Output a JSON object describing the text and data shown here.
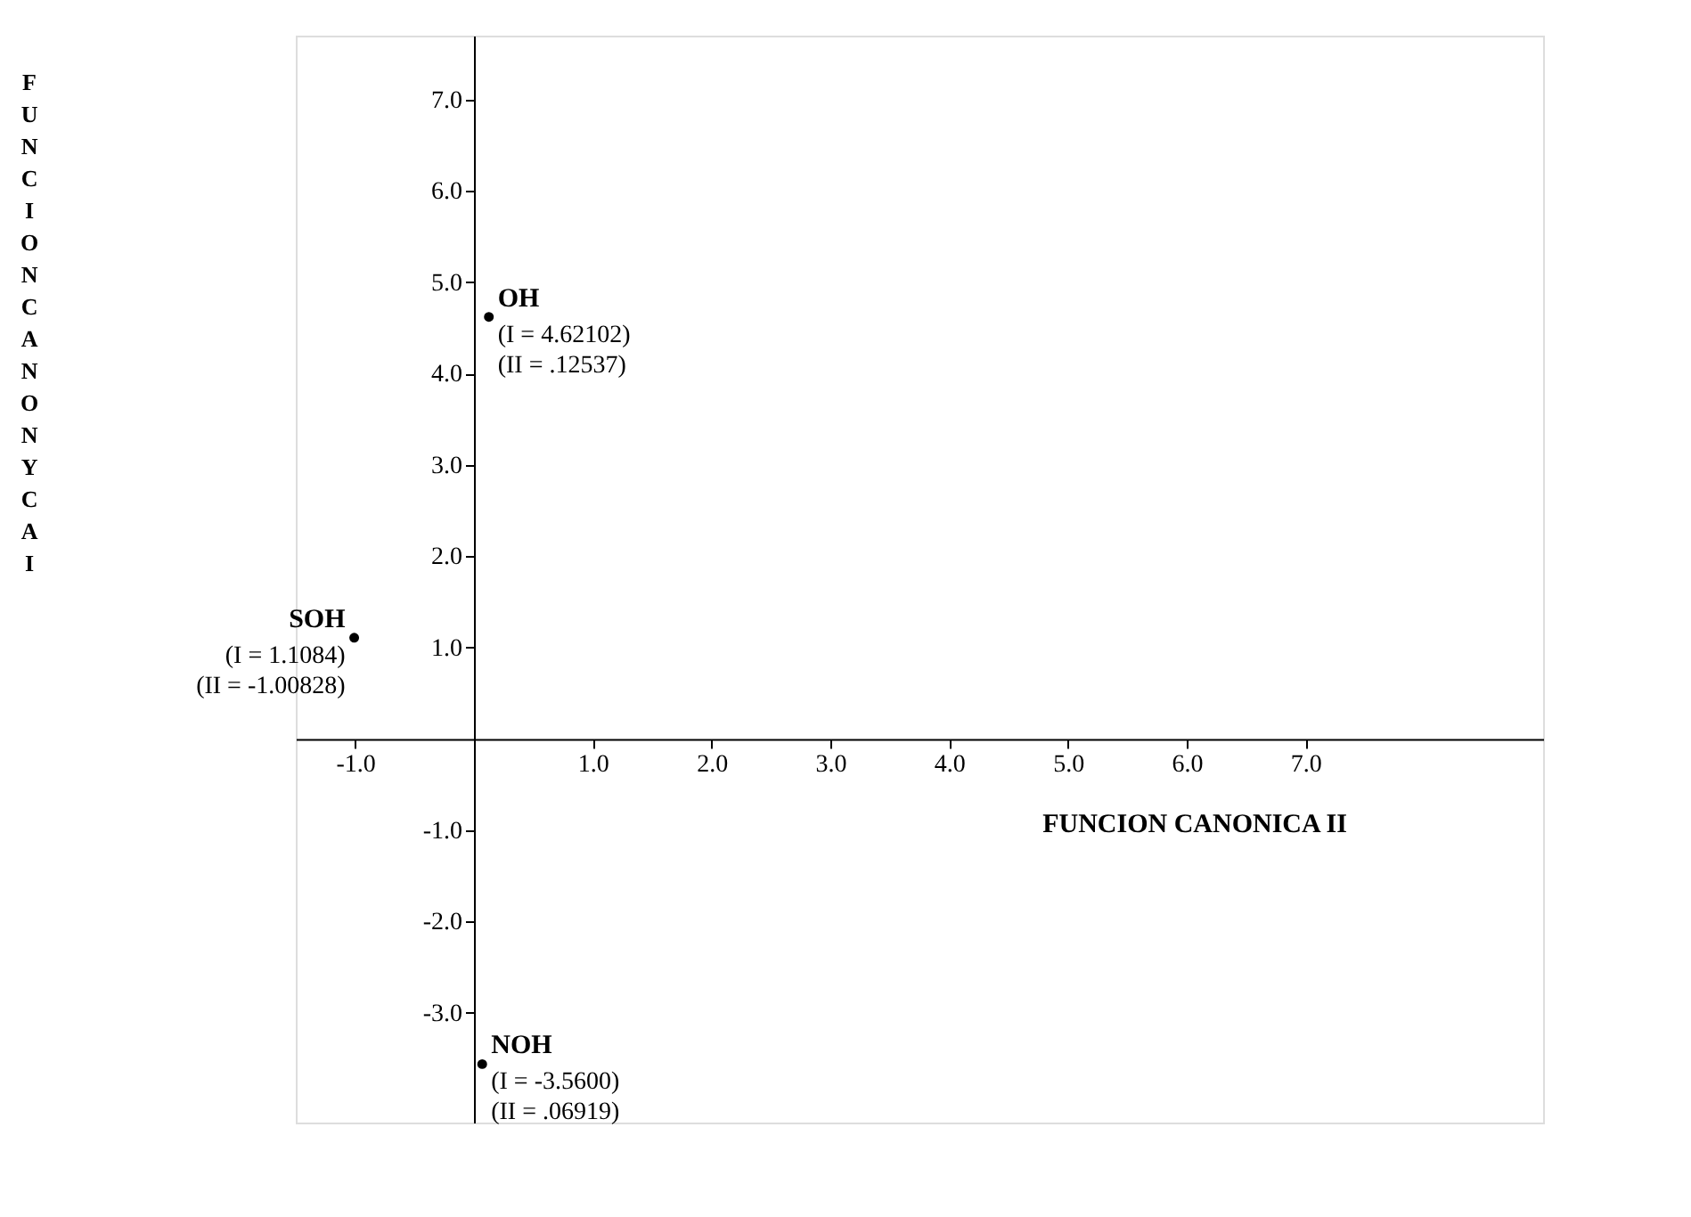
{
  "chart_data": {
    "type": "scatter",
    "xlabel": "FUNCION CANONICA II",
    "ylabel": "FUNCION CANONYCA I",
    "series": [
      {
        "name": "OH",
        "color": "#000000",
        "x": [
          0.12537
        ],
        "values": [
          4.62102
        ]
      },
      {
        "name": "SOH",
        "color": "#000000",
        "x": [
          -1.00828
        ],
        "values": [
          1.1084
        ]
      },
      {
        "name": "NOH",
        "color": "#000000",
        "x": [
          0.06919
        ],
        "values": [
          -3.56
        ]
      }
    ],
    "annotations": [
      {
        "text": "(I = 4.62102)",
        "x": 0.12537,
        "y": 4.62102
      },
      {
        "text": "(II = .12537)",
        "x": 0.12537,
        "y": 4.62102
      },
      {
        "text": "(I = 1.1084)",
        "x": -1.00828,
        "y": 1.1084
      },
      {
        "text": "(II = -1.00828)",
        "x": -1.00828,
        "y": 1.1084
      },
      {
        "text": "(I = -3.5600)",
        "x": 0.06919,
        "y": -3.56
      },
      {
        "text": "(II = .06919)",
        "x": 0.06919,
        "y": -3.56
      }
    ],
    "xlim": [
      -1.5,
      9.0
    ],
    "ylim": [
      -4.2,
      7.7
    ],
    "xticks": [
      {
        "value": -1,
        "label": "-1.0"
      },
      {
        "value": 1,
        "label": "1.0"
      },
      {
        "value": 2,
        "label": "2.0"
      },
      {
        "value": 3,
        "label": "3.0"
      },
      {
        "value": 4,
        "label": "4.0"
      },
      {
        "value": 5,
        "label": "5.0"
      },
      {
        "value": 6,
        "label": "6.0"
      },
      {
        "value": 7,
        "label": "7.0"
      }
    ],
    "yticks": [
      {
        "value": -3,
        "label": "-3.0"
      },
      {
        "value": -2,
        "label": "-2.0"
      },
      {
        "value": -1,
        "label": "-1.0"
      },
      {
        "value": 1,
        "label": "1.0"
      },
      {
        "value": 2,
        "label": "2.0"
      },
      {
        "value": 3,
        "label": "3.0"
      },
      {
        "value": 4,
        "label": "4.0"
      },
      {
        "value": 5,
        "label": "5.0"
      },
      {
        "value": 6,
        "label": "6.0"
      },
      {
        "value": 7,
        "label": "7.0"
      }
    ],
    "grid": false,
    "legend": false,
    "marker": "circle"
  }
}
